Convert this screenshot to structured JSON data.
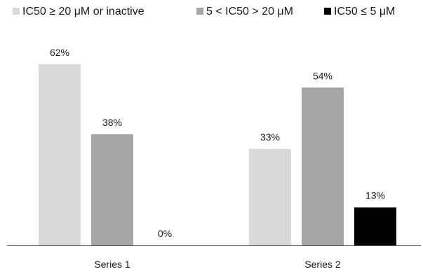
{
  "chart_data": {
    "type": "bar",
    "categories": [
      "Series 1",
      "Series 2"
    ],
    "series": [
      {
        "name": "IC50 ≥ 20 μM or inactive",
        "values": [
          62,
          33
        ],
        "labels": [
          "62%",
          "33%"
        ],
        "color": "#d9d9d9"
      },
      {
        "name": "5 < IC50 > 20 μM",
        "values": [
          38,
          54
        ],
        "labels": [
          "38%",
          "54%"
        ],
        "color": "#a6a6a6"
      },
      {
        "name": "IC50 ≤ 5 μM",
        "values": [
          0,
          13
        ],
        "labels": [
          "0%",
          "13%"
        ],
        "color": "#000000"
      }
    ],
    "ylim": [
      0,
      70
    ],
    "grid": false,
    "legend_position": "top",
    "axis_color": "#595959"
  }
}
